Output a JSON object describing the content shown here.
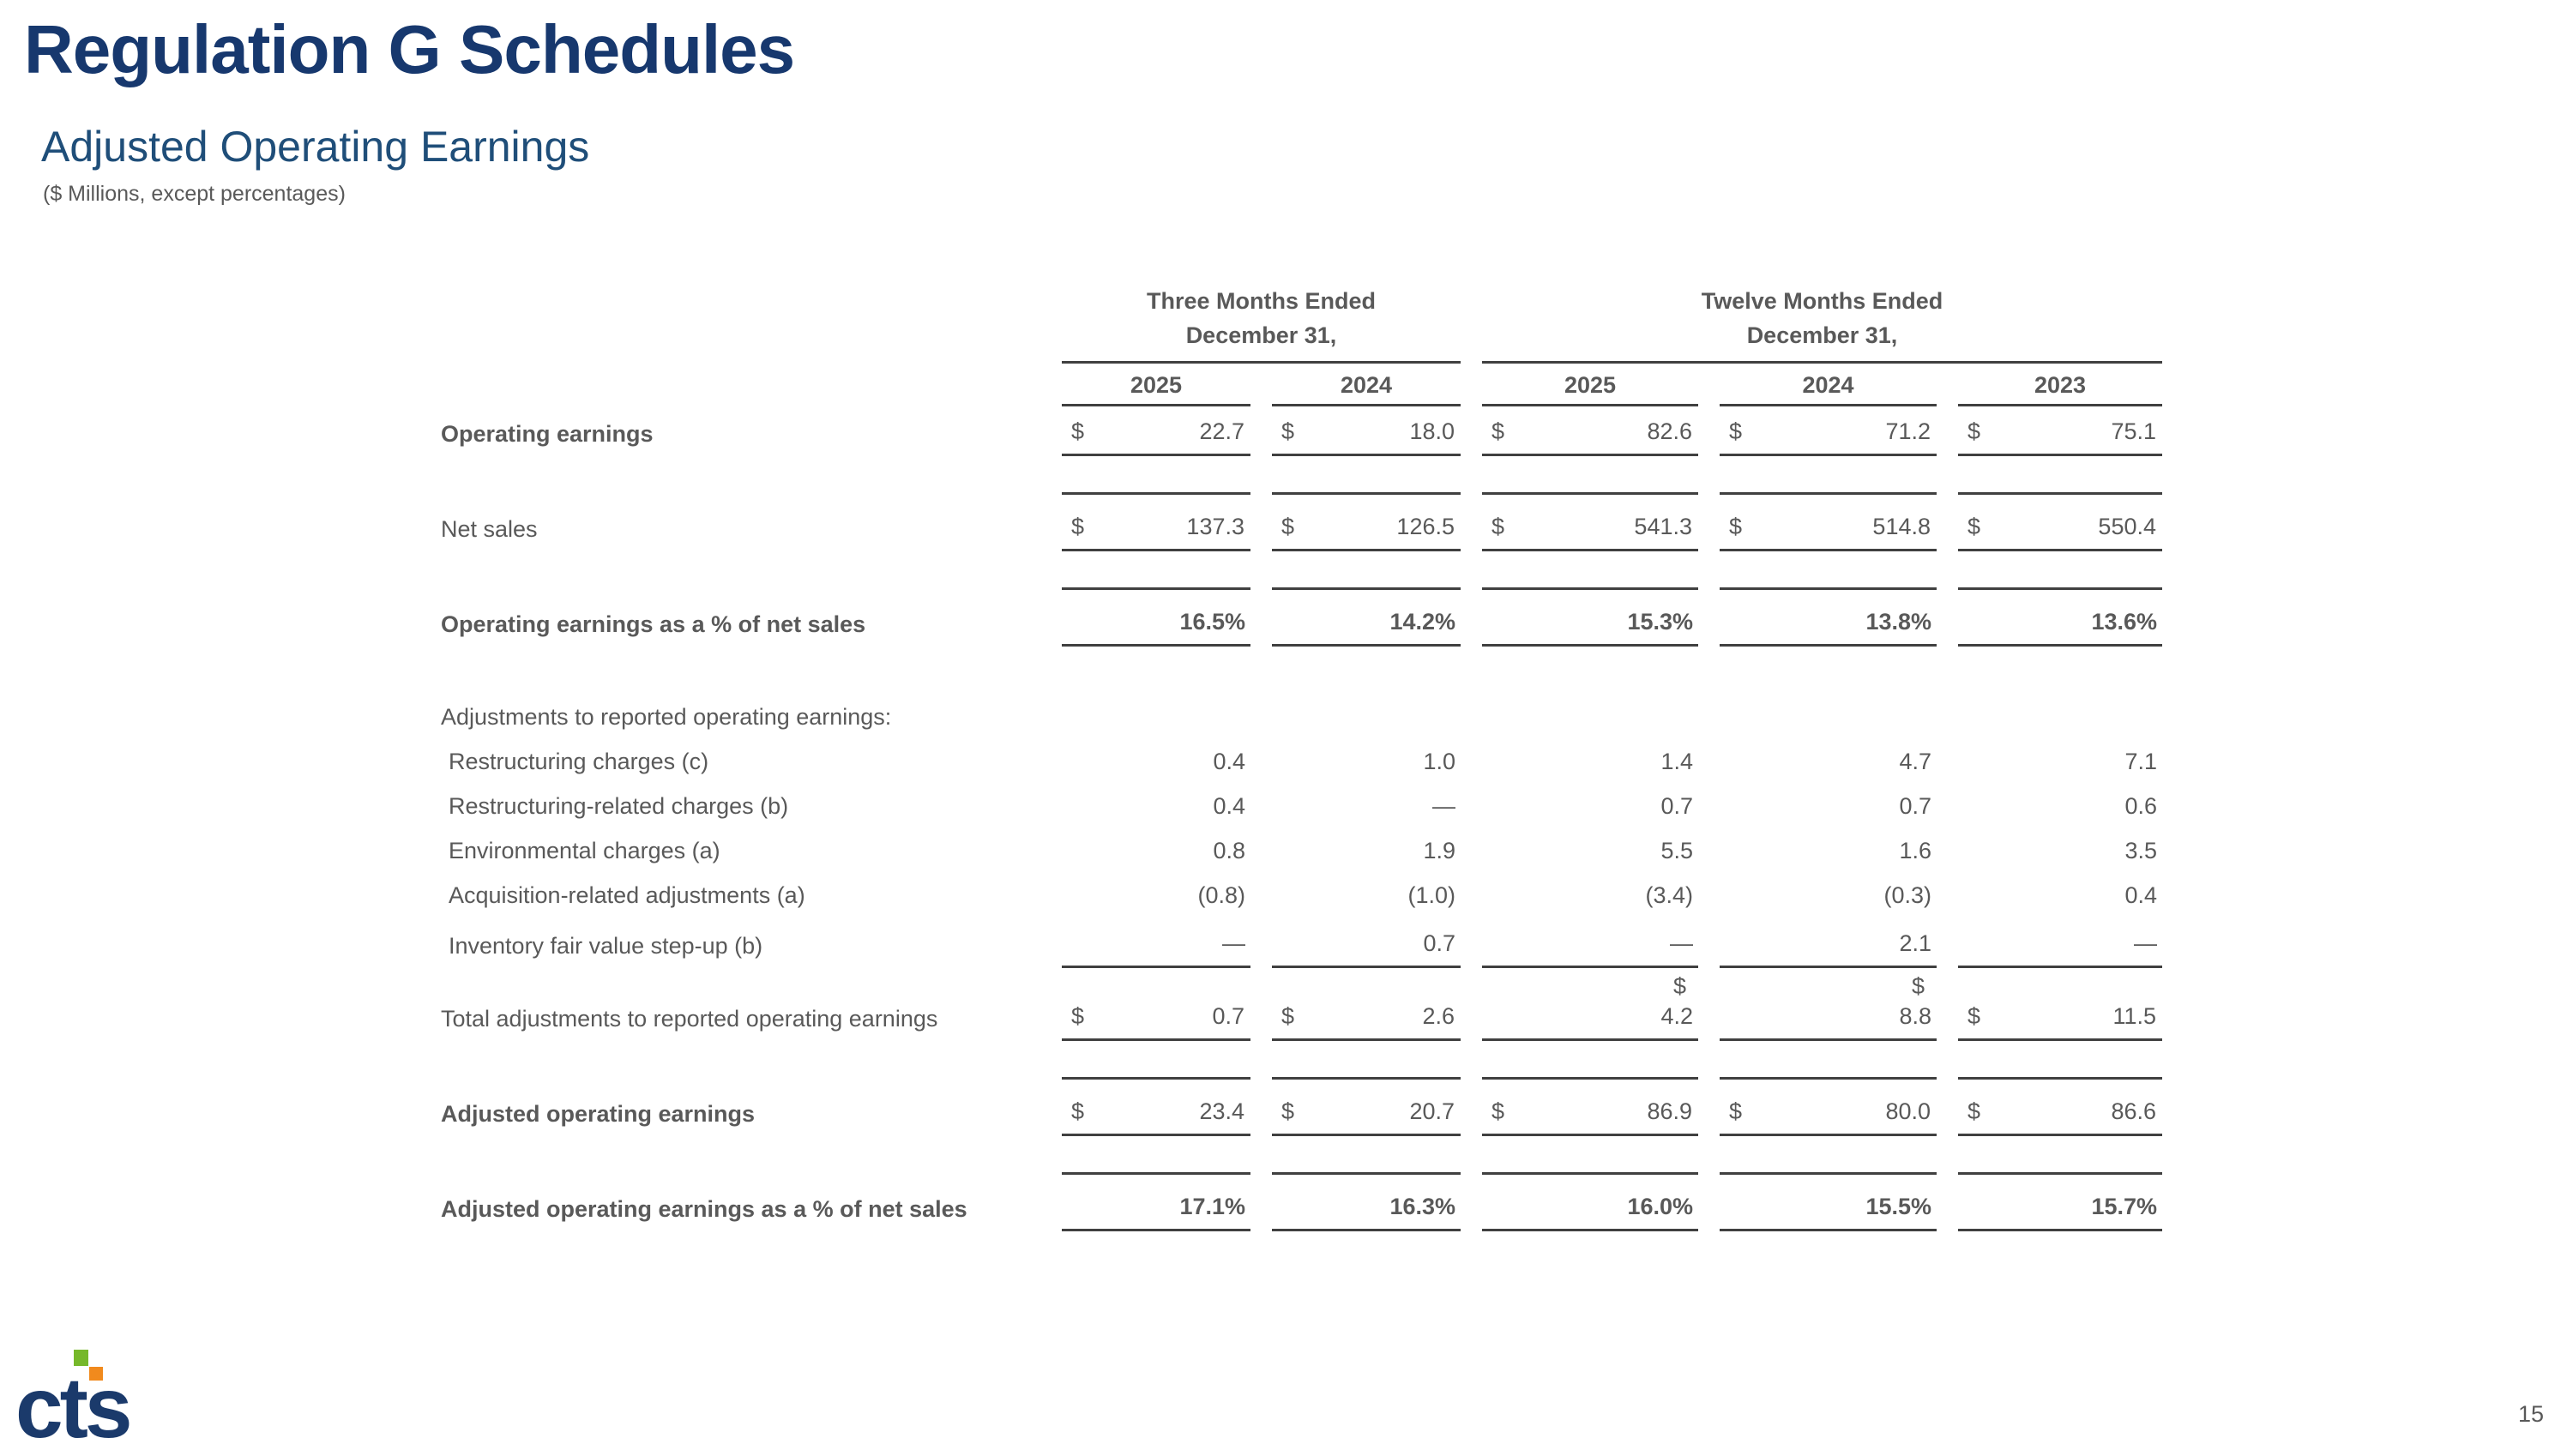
{
  "slide": {
    "title": "Regulation G Schedules",
    "subtitle": "Adjusted Operating Earnings",
    "note": "($ Millions, except percentages)",
    "page_number": "15"
  },
  "colors": {
    "title_navy": "#17386e",
    "subtitle_navy": "#1f4e79",
    "text_gray": "#595959",
    "bold_gray": "#3f3f3f",
    "border_gray": "#404040",
    "logo_navy": "#1b3a6b",
    "logo_green": "#76b82a",
    "logo_orange": "#f18a1d"
  },
  "logo": {
    "text": "cts"
  },
  "table": {
    "col_groups": [
      {
        "label_lines": [
          "Three Months Ended",
          "December 31,"
        ],
        "span": 2
      },
      {
        "label_lines": [
          "Twelve Months Ended",
          "December 31,"
        ],
        "span": 3
      }
    ],
    "years": [
      "2025",
      "2024",
      "2025",
      "2024",
      "2023"
    ],
    "rows": [
      {
        "label": "Operating earnings",
        "bold": true,
        "dollar": true,
        "values": [
          "22.7",
          "18.0",
          "82.6",
          "71.2",
          "75.1"
        ],
        "border": "bottom"
      },
      {
        "label": "Net sales",
        "bold": false,
        "dollar": true,
        "values": [
          "137.3",
          "126.5",
          "541.3",
          "514.8",
          "550.4"
        ],
        "border": "both"
      },
      {
        "label": "Operating earnings as a % of net sales",
        "bold": true,
        "bold_values": true,
        "values": [
          "16.5%",
          "14.2%",
          "15.3%",
          "13.8%",
          "13.6%"
        ],
        "border": "both"
      },
      {
        "label": "Adjustments to reported operating earnings:",
        "type": "section"
      },
      {
        "label": "Restructuring charges (c)",
        "indent": true,
        "values": [
          "0.4",
          "1.0",
          "1.4",
          "4.7",
          "7.1"
        ]
      },
      {
        "label": "Restructuring-related charges (b)",
        "indent": true,
        "values": [
          "0.4",
          "—",
          "0.7",
          "0.7",
          "0.6"
        ]
      },
      {
        "label": "Environmental charges (a)",
        "indent": true,
        "values": [
          "0.8",
          "1.9",
          "5.5",
          "1.6",
          "3.5"
        ]
      },
      {
        "label": "Acquisition-related adjustments (a)",
        "indent": true,
        "values": [
          "(0.8)",
          "(1.0)",
          "(3.4)",
          "(0.3)",
          "0.4"
        ]
      },
      {
        "label": "Inventory fair value step-up (b)",
        "indent": true,
        "values": [
          "—",
          "0.7",
          "—",
          "2.1",
          "—"
        ],
        "border": "bottom"
      },
      {
        "label": "Total adjustments to reported operating earnings",
        "dollar": true,
        "wrap_dollar": [
          2,
          3
        ],
        "values": [
          "0.7",
          "2.6",
          "4.2",
          "8.8",
          "11.5"
        ],
        "border": "bottom"
      },
      {
        "label": "Adjusted operating earnings",
        "bold": true,
        "dollar": true,
        "values": [
          "23.4",
          "20.7",
          "86.9",
          "80.0",
          "86.6"
        ],
        "border": "both"
      },
      {
        "label": "Adjusted operating earnings as a % of net sales",
        "bold": true,
        "bold_values": true,
        "values": [
          "17.1%",
          "16.3%",
          "16.0%",
          "15.5%",
          "15.7%"
        ],
        "border": "both"
      }
    ],
    "dollar_sign": "$"
  }
}
